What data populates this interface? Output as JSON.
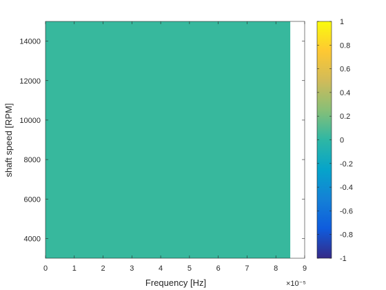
{
  "chart_data": {
    "type": "heatmap",
    "title": "",
    "xlabel": "Frequency [Hz]",
    "ylabel": "shaft speed [RPM]",
    "x_exponent_label": "×10⁻⁵",
    "xlim": [
      0,
      9
    ],
    "ylim": [
      3000,
      15000
    ],
    "x_ticks": [
      0,
      1,
      2,
      3,
      4,
      5,
      6,
      7,
      8,
      9
    ],
    "x_tick_labels": [
      "0",
      "1",
      "2",
      "3",
      "4",
      "5",
      "6",
      "7",
      "8",
      "9"
    ],
    "y_ticks": [
      4000,
      6000,
      8000,
      10000,
      12000,
      14000
    ],
    "y_tick_labels": [
      "4000",
      "6000",
      "8000",
      "10000",
      "12000",
      "14000"
    ],
    "data_extent": {
      "x": [
        0,
        8.5
      ],
      "y": [
        3000,
        15000
      ]
    },
    "value": 0,
    "fill_color": "#37b89d",
    "grid": false,
    "colorbar": {
      "clim": [
        -1,
        1
      ],
      "ticks": [
        -1,
        -0.8,
        -0.6,
        -0.4,
        -0.2,
        0,
        0.2,
        0.4,
        0.6,
        0.8,
        1
      ],
      "tick_labels": [
        "-1",
        "-0.8",
        "-0.6",
        "-0.4",
        "-0.2",
        "0",
        "0.2",
        "0.4",
        "0.6",
        "0.8",
        "1"
      ],
      "colormap": "parula",
      "colors": [
        "#352a87",
        "#0f5cdd",
        "#1481d6",
        "#06a4ca",
        "#2eb7a4",
        "#87bf77",
        "#d1bb59",
        "#fec832",
        "#f9fb0e"
      ]
    }
  }
}
